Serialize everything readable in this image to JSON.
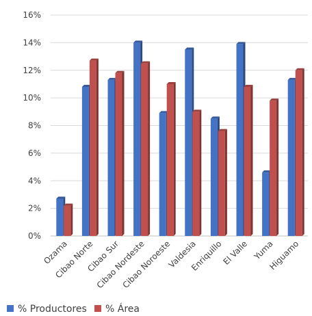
{
  "chart_data": {
    "type": "bar",
    "style": "3d-clustered-column",
    "categories": [
      "Ozama",
      "Cibao Norte",
      "Cibao Sur",
      "Cibao Nordeste",
      "Cibao Noroeste",
      "Valdesia",
      "Enriquillo",
      "El Valle",
      "Yuma",
      "Higuamo"
    ],
    "series": [
      {
        "name": "% Productores",
        "color": "#4472C4",
        "values": [
          2.7,
          10.8,
          11.3,
          14.0,
          8.9,
          13.5,
          8.5,
          13.9,
          4.6,
          11.3
        ]
      },
      {
        "name": "% Área",
        "color": "#C0504D",
        "values": [
          2.2,
          12.7,
          11.8,
          12.5,
          11.0,
          9.0,
          7.6,
          10.8,
          9.8,
          12.0
        ]
      }
    ],
    "yticks": [
      "0%",
      "2%",
      "4%",
      "6%",
      "8%",
      "10%",
      "12%",
      "14%",
      "16%"
    ],
    "ylim": [
      0,
      16
    ],
    "grid": true,
    "legend": "bottom-left"
  }
}
